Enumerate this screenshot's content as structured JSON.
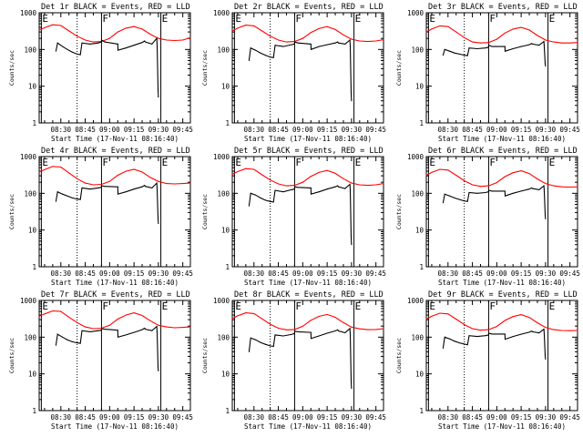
{
  "chart_data": {
    "type": "line",
    "layout": "3x3 grid of panels",
    "ylog": true,
    "ylim": [
      1,
      1000
    ],
    "ylabel": "Counts/sec",
    "xlabel": "Start Time (17-Nov-11 08:16:40)",
    "xlim": [
      "08:16:40",
      "09:49:40"
    ],
    "x_ticks": [
      "08:30",
      "08:45",
      "09:00",
      "09:15",
      "09:30",
      "09:45"
    ],
    "y_ticks": [
      "1",
      "10",
      "100",
      "1000"
    ],
    "colors": {
      "events": "#000000",
      "lld": "#ff0000"
    },
    "markers": [
      {
        "label": "E",
        "time": "08:18:00",
        "style": "solid"
      },
      {
        "label": "",
        "time": "08:40:00",
        "style": "dotted"
      },
      {
        "label": "F",
        "time": "08:55:00",
        "style": "solid"
      },
      {
        "label": "E",
        "time": "09:31:30",
        "style": "solid"
      }
    ],
    "panels": [
      {
        "title": "Det 1r BLACK = Events, RED = LLD",
        "events": {
          "x": [
            "08:27",
            "08:28",
            "08:31",
            "08:34",
            "08:37",
            "08:40",
            "08:42",
            "08:43",
            "08:48",
            "08:53",
            "08:54.9",
            "08:55.1",
            "08:57",
            "09:05",
            "09:05.1",
            "09:10",
            "09:15",
            "09:20",
            "09:21.5",
            "09:22",
            "09:26",
            "09:29",
            "09:29.2",
            "09:29.8",
            "09:30"
          ],
          "y": [
            90,
            150,
            120,
            100,
            85,
            75,
            72,
            150,
            140,
            150,
            160,
            180,
            160,
            140,
            95,
            110,
            130,
            155,
            170,
            160,
            140,
            200,
            130,
            8,
            5
          ]
        },
        "lld": {
          "x": [
            "08:16:40",
            "08:20",
            "08:25",
            "08:30",
            "08:35",
            "08:40",
            "08:45",
            "08:50",
            "08:55",
            "09:00",
            "09:05",
            "09:10",
            "09:15",
            "09:20",
            "09:25",
            "09:30",
            "09:35",
            "09:40",
            "09:45",
            "09:49:40"
          ],
          "y": [
            340,
            390,
            470,
            450,
            320,
            230,
            180,
            160,
            165,
            200,
            300,
            380,
            420,
            360,
            260,
            200,
            180,
            175,
            180,
            210
          ]
        }
      },
      {
        "title": "Det 2r BLACK = Events, RED = LLD",
        "events": {
          "x": [
            "08:27",
            "08:28",
            "08:31",
            "08:34",
            "08:37",
            "08:40",
            "08:42",
            "08:43",
            "08:48",
            "08:53",
            "08:54.9",
            "08:55.1",
            "08:57",
            "09:05",
            "09:05.1",
            "09:10",
            "09:15",
            "09:20",
            "09:21.5",
            "09:22",
            "09:26",
            "09:29",
            "09:29.2",
            "09:29.8",
            "09:30"
          ],
          "y": [
            50,
            110,
            95,
            80,
            70,
            62,
            60,
            130,
            120,
            135,
            140,
            160,
            150,
            140,
            100,
            120,
            135,
            150,
            160,
            150,
            140,
            180,
            120,
            6,
            4
          ]
        },
        "lld": {
          "x": [
            "08:16:40",
            "08:20",
            "08:25",
            "08:30",
            "08:35",
            "08:40",
            "08:45",
            "08:50",
            "08:55",
            "09:00",
            "09:05",
            "09:10",
            "09:15",
            "09:20",
            "09:25",
            "09:30",
            "09:35",
            "09:40",
            "09:45",
            "09:49:40"
          ],
          "y": [
            320,
            380,
            460,
            440,
            320,
            230,
            180,
            160,
            165,
            200,
            290,
            370,
            420,
            350,
            250,
            190,
            170,
            165,
            170,
            185
          ]
        }
      },
      {
        "title": "Det 3r BLACK = Events, RED = LLD",
        "events": {
          "x": [
            "08:27",
            "08:28",
            "08:31",
            "08:34",
            "08:37",
            "08:40",
            "08:42",
            "08:43",
            "08:48",
            "08:53",
            "08:54.9",
            "08:55.1",
            "08:57",
            "09:05",
            "09:05.1",
            "09:10",
            "09:15",
            "09:20",
            "09:21.5",
            "09:22",
            "09:26",
            "09:29",
            "09:29.2",
            "09:29.8",
            "09:30"
          ],
          "y": [
            70,
            100,
            90,
            80,
            75,
            70,
            68,
            110,
            105,
            110,
            115,
            130,
            120,
            120,
            90,
            105,
            120,
            135,
            145,
            140,
            130,
            165,
            115,
            40,
            35
          ]
        },
        "lld": {
          "x": [
            "08:16:40",
            "08:20",
            "08:25",
            "08:30",
            "08:35",
            "08:40",
            "08:45",
            "08:50",
            "08:55",
            "09:00",
            "09:05",
            "09:10",
            "09:15",
            "09:20",
            "09:25",
            "09:30",
            "09:35",
            "09:40",
            "09:45",
            "09:49:40"
          ],
          "y": [
            300,
            360,
            440,
            420,
            300,
            210,
            160,
            150,
            155,
            190,
            280,
            360,
            400,
            340,
            240,
            180,
            160,
            150,
            150,
            155
          ]
        }
      },
      {
        "title": "Det 4r BLACK = Events, RED = LLD",
        "events": {
          "x": [
            "08:27",
            "08:28",
            "08:31",
            "08:34",
            "08:37",
            "08:40",
            "08:42",
            "08:43",
            "08:48",
            "08:53",
            "08:54.9",
            "08:55.1",
            "08:57",
            "09:05",
            "09:05.1",
            "09:10",
            "09:15",
            "09:20",
            "09:21.5",
            "09:22",
            "09:26",
            "09:29",
            "09:29.2",
            "09:29.8",
            "09:30"
          ],
          "y": [
            60,
            110,
            95,
            85,
            75,
            70,
            68,
            140,
            130,
            140,
            145,
            160,
            155,
            150,
            95,
            110,
            130,
            150,
            165,
            155,
            140,
            190,
            125,
            20,
            15
          ]
        },
        "lld": {
          "x": [
            "08:16:40",
            "08:20",
            "08:25",
            "08:30",
            "08:35",
            "08:40",
            "08:45",
            "08:50",
            "08:55",
            "09:00",
            "09:05",
            "09:10",
            "09:15",
            "09:20",
            "09:25",
            "09:30",
            "09:35",
            "09:40",
            "09:45",
            "09:49:40"
          ],
          "y": [
            380,
            440,
            540,
            520,
            360,
            250,
            190,
            170,
            175,
            210,
            310,
            400,
            450,
            380,
            270,
            210,
            185,
            180,
            185,
            190
          ]
        }
      },
      {
        "title": "Det 5r BLACK = Events, RED = LLD",
        "events": {
          "x": [
            "08:27",
            "08:28",
            "08:31",
            "08:34",
            "08:37",
            "08:40",
            "08:42",
            "08:43",
            "08:48",
            "08:53",
            "08:54.9",
            "08:55.1",
            "08:57",
            "09:05",
            "09:05.1",
            "09:10",
            "09:15",
            "09:20",
            "09:21.5",
            "09:22",
            "09:26",
            "09:29",
            "09:29.2",
            "09:29.8",
            "09:30"
          ],
          "y": [
            45,
            100,
            90,
            75,
            65,
            60,
            58,
            120,
            110,
            125,
            130,
            150,
            145,
            140,
            95,
            110,
            130,
            150,
            160,
            150,
            135,
            175,
            120,
            6,
            4
          ]
        },
        "lld": {
          "x": [
            "08:16:40",
            "08:20",
            "08:25",
            "08:30",
            "08:35",
            "08:40",
            "08:45",
            "08:50",
            "08:55",
            "09:00",
            "09:05",
            "09:10",
            "09:15",
            "09:20",
            "09:25",
            "09:30",
            "09:35",
            "09:40",
            "09:45",
            "09:49:40"
          ],
          "y": [
            330,
            390,
            470,
            450,
            320,
            230,
            180,
            160,
            165,
            200,
            290,
            370,
            420,
            350,
            250,
            190,
            170,
            165,
            170,
            185
          ]
        }
      },
      {
        "title": "Det 6r BLACK = Events, RED = LLD",
        "events": {
          "x": [
            "08:27",
            "08:28",
            "08:31",
            "08:34",
            "08:37",
            "08:40",
            "08:42",
            "08:43",
            "08:48",
            "08:53",
            "08:54.9",
            "08:55.1",
            "08:57",
            "09:05",
            "09:05.1",
            "09:10",
            "09:15",
            "09:20",
            "09:21.5",
            "09:22",
            "09:26",
            "09:29",
            "09:29.2",
            "09:29.8",
            "09:30"
          ],
          "y": [
            55,
            95,
            85,
            75,
            68,
            62,
            60,
            105,
            100,
            105,
            110,
            120,
            115,
            115,
            85,
            100,
            115,
            130,
            140,
            135,
            125,
            160,
            110,
            25,
            20
          ]
        },
        "lld": {
          "x": [
            "08:16:40",
            "08:20",
            "08:25",
            "08:30",
            "08:35",
            "08:40",
            "08:45",
            "08:50",
            "08:55",
            "09:00",
            "09:05",
            "09:10",
            "09:15",
            "09:20",
            "09:25",
            "09:30",
            "09:35",
            "09:40",
            "09:45",
            "09:49:40"
          ],
          "y": [
            310,
            370,
            450,
            430,
            310,
            220,
            170,
            155,
            160,
            195,
            285,
            365,
            410,
            345,
            245,
            185,
            160,
            150,
            148,
            150
          ]
        }
      },
      {
        "title": "Det 7r BLACK = Events, RED = LLD",
        "events": {
          "x": [
            "08:27",
            "08:28",
            "08:31",
            "08:34",
            "08:37",
            "08:40",
            "08:42",
            "08:43",
            "08:48",
            "08:53",
            "08:54.9",
            "08:55.1",
            "08:57",
            "09:05",
            "09:05.1",
            "09:10",
            "09:15",
            "09:20",
            "09:21.5",
            "09:22",
            "09:26",
            "09:29",
            "09:29.2",
            "09:29.8",
            "09:30"
          ],
          "y": [
            60,
            120,
            100,
            85,
            75,
            70,
            68,
            150,
            140,
            150,
            155,
            170,
            165,
            155,
            100,
            115,
            135,
            160,
            175,
            165,
            150,
            195,
            130,
            15,
            12
          ]
        },
        "lld": {
          "x": [
            "08:16:40",
            "08:20",
            "08:25",
            "08:30",
            "08:35",
            "08:40",
            "08:45",
            "08:50",
            "08:55",
            "09:00",
            "09:05",
            "09:10",
            "09:15",
            "09:20",
            "09:25",
            "09:30",
            "09:35",
            "09:40",
            "09:45",
            "09:49:40"
          ],
          "y": [
            370,
            430,
            520,
            500,
            350,
            250,
            190,
            170,
            175,
            210,
            310,
            400,
            460,
            390,
            280,
            210,
            190,
            180,
            185,
            190
          ]
        }
      },
      {
        "title": "Det 8r BLACK = Events, RED = LLD",
        "events": {
          "x": [
            "08:27",
            "08:28",
            "08:31",
            "08:34",
            "08:37",
            "08:40",
            "08:42",
            "08:43",
            "08:48",
            "08:53",
            "08:54.9",
            "08:55.1",
            "08:57",
            "09:05",
            "09:05.1",
            "09:10",
            "09:15",
            "09:20",
            "09:21.5",
            "09:22",
            "09:26",
            "09:29",
            "09:29.2",
            "09:29.8",
            "09:30"
          ],
          "y": [
            40,
            95,
            85,
            72,
            64,
            58,
            56,
            115,
            108,
            118,
            125,
            145,
            140,
            135,
            92,
            108,
            128,
            148,
            158,
            148,
            132,
            172,
            118,
            6,
            4
          ]
        },
        "lld": {
          "x": [
            "08:16:40",
            "08:20",
            "08:25",
            "08:30",
            "08:35",
            "08:40",
            "08:45",
            "08:50",
            "08:55",
            "09:00",
            "09:05",
            "09:10",
            "09:15",
            "09:20",
            "09:25",
            "09:30",
            "09:35",
            "09:40",
            "09:45",
            "09:49:40"
          ],
          "y": [
            320,
            380,
            460,
            440,
            315,
            225,
            175,
            158,
            162,
            198,
            288,
            368,
            415,
            348,
            248,
            188,
            168,
            160,
            162,
            170
          ]
        }
      },
      {
        "title": "Det 9r BLACK = Events, RED = LLD",
        "events": {
          "x": [
            "08:27",
            "08:28",
            "08:31",
            "08:34",
            "08:37",
            "08:40",
            "08:42",
            "08:43",
            "08:48",
            "08:53",
            "08:54.9",
            "08:55.1",
            "08:57",
            "09:05",
            "09:05.1",
            "09:10",
            "09:15",
            "09:20",
            "09:21.5",
            "09:22",
            "09:26",
            "09:29",
            "09:29.2",
            "09:29.8",
            "09:30"
          ],
          "y": [
            50,
            100,
            90,
            78,
            70,
            65,
            62,
            110,
            104,
            110,
            115,
            128,
            122,
            122,
            88,
            104,
            120,
            136,
            146,
            140,
            130,
            165,
            115,
            30,
            25
          ]
        },
        "lld": {
          "x": [
            "08:16:40",
            "08:20",
            "08:25",
            "08:30",
            "08:35",
            "08:40",
            "08:45",
            "08:50",
            "08:55",
            "09:00",
            "09:05",
            "09:10",
            "09:15",
            "09:20",
            "09:25",
            "09:30",
            "09:35",
            "09:40",
            "09:45",
            "09:49:40"
          ],
          "y": [
            310,
            370,
            450,
            430,
            310,
            220,
            170,
            155,
            160,
            195,
            285,
            365,
            410,
            345,
            245,
            185,
            160,
            152,
            150,
            152
          ]
        }
      }
    ]
  }
}
